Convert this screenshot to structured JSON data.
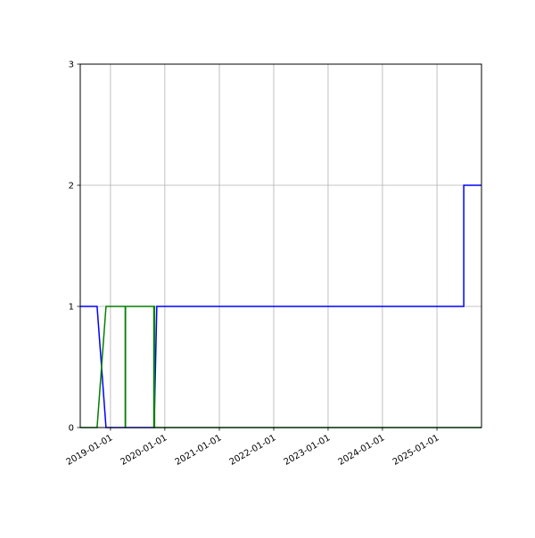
{
  "chart_data": {
    "type": "line",
    "title": "",
    "xlabel": "",
    "ylabel": "",
    "xlim": [
      "2018-06-12",
      "2025-10-27"
    ],
    "ylim": [
      0,
      3
    ],
    "grid": true,
    "x_ticks": [
      "2019-01-01",
      "2020-01-01",
      "2021-01-01",
      "2022-01-01",
      "2023-01-01",
      "2024-01-01",
      "2025-01-01"
    ],
    "y_ticks": [
      "0",
      "1",
      "2",
      "3"
    ],
    "series": [
      {
        "color": "#0000ff",
        "points": [
          [
            "2018-06-12",
            1
          ],
          [
            "2018-10-03",
            1
          ],
          [
            "2018-12-02",
            0
          ],
          [
            "2019-10-21",
            0
          ],
          [
            "2019-11-08",
            1
          ],
          [
            "2025-06-30",
            1
          ],
          [
            "2025-06-30",
            2
          ],
          [
            "2025-10-27",
            2
          ]
        ]
      },
      {
        "color": "#008000",
        "points": [
          [
            "2018-06-12",
            0
          ],
          [
            "2018-10-03",
            0
          ],
          [
            "2018-12-02",
            1
          ],
          [
            "2019-04-10",
            1
          ],
          [
            "2019-04-10",
            0
          ],
          [
            "2019-04-12",
            0
          ],
          [
            "2019-04-12",
            1
          ],
          [
            "2019-10-19",
            1
          ],
          [
            "2019-10-19",
            0
          ],
          [
            "2019-10-21",
            0
          ],
          [
            "2019-10-21",
            1
          ],
          [
            "2019-10-24",
            1
          ],
          [
            "2019-10-24",
            0
          ],
          [
            "2025-10-27",
            0
          ]
        ]
      }
    ]
  }
}
